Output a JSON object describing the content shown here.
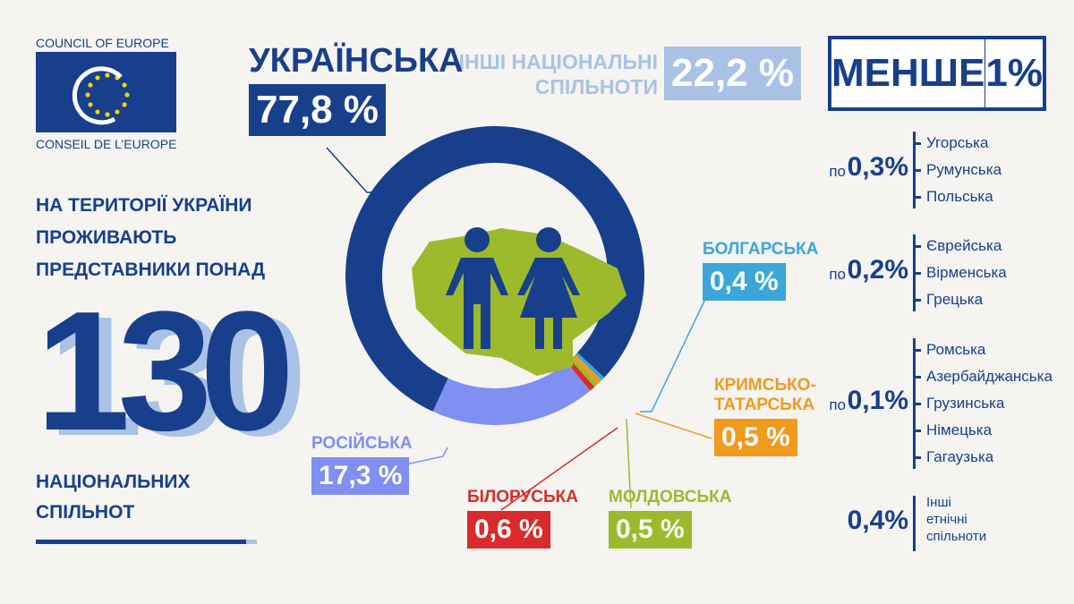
{
  "logo": {
    "top": "COUNCIL OF EUROPE",
    "bottom": "CONSEIL DE L’EUROPE"
  },
  "headline": {
    "intro": [
      "НА ТЕРИТОРІЇ УКРАЇНИ",
      "ПРОЖИВАЮТЬ",
      "ПРЕДСТАВНИКИ ПОНАД"
    ],
    "number": 130,
    "outro": [
      "НАЦІОНАЛЬНИХ",
      "СПІЛЬНОТ"
    ]
  },
  "other_communities": {
    "label": [
      "ІНШІ НАЦІОНАЛЬНІ",
      "СПІЛЬНОТИ"
    ],
    "value": "22,2 %"
  },
  "minor": {
    "title": "МЕНШЕ",
    "threshold": "1%",
    "groups": [
      {
        "prefix": "по",
        "share": "0,3%",
        "items": [
          "Угорська",
          "Румунська",
          "Польська"
        ]
      },
      {
        "prefix": "по",
        "share": "0,2%",
        "items": [
          "Єврейська",
          "Вірменська",
          "Грецька"
        ]
      },
      {
        "prefix": "по",
        "share": "0,1%",
        "items": [
          "Ромська",
          "Азербайджанська",
          "Грузинська",
          "Німецька",
          "Гагаузька"
        ]
      },
      {
        "share": "0,4%",
        "items": [
          "Інші етнічні спільноти"
        ]
      }
    ]
  },
  "chart_data": {
    "type": "pie",
    "categories": [
      "УКРАЇНСЬКА",
      "РОСІЙСЬКА",
      "БІЛОРУСЬКА",
      "МОЛДОВСЬКА",
      "КРИМСЬКО-ТАТАРСЬКА",
      "БОЛГАРСЬКА"
    ],
    "values": [
      77.8,
      17.3,
      0.6,
      0.5,
      0.5,
      0.4
    ],
    "value_labels": [
      "77,8 %",
      "17,3 %",
      "0,6 %",
      "0,5 %",
      "0,5 %",
      "0,4 %"
    ],
    "colors": [
      "#183f8c",
      "#7f8ff2",
      "#d92b2b",
      "#9cba2c",
      "#f09a1e",
      "#3aa6dc"
    ]
  }
}
